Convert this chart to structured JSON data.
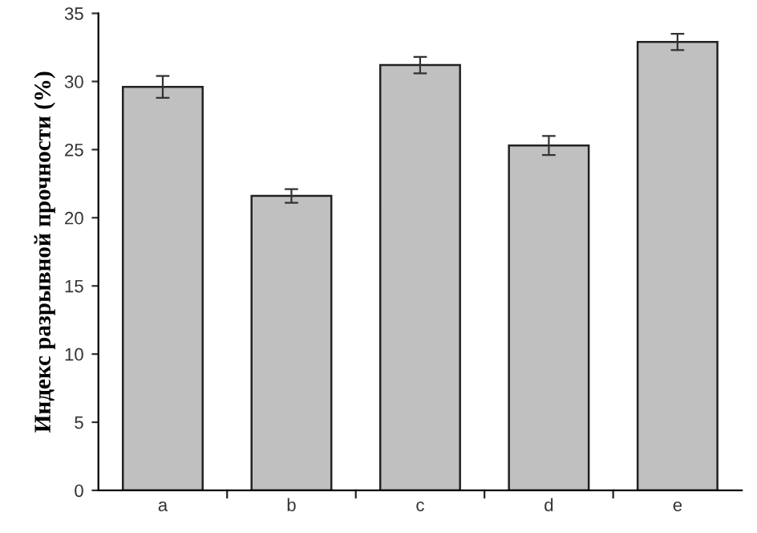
{
  "chart_data": {
    "type": "bar",
    "ylabel": "Индекс разрывной прочности (%)",
    "categories": [
      "a",
      "b",
      "c",
      "d",
      "e"
    ],
    "values": [
      29.6,
      21.6,
      31.2,
      25.3,
      32.9
    ],
    "errors": [
      0.8,
      0.5,
      0.6,
      0.7,
      0.6
    ],
    "color": "#c0c0c0",
    "ylim": [
      0,
      35
    ],
    "yticks": [
      0,
      5,
      10,
      15,
      20,
      25,
      30,
      35
    ],
    "grid": false,
    "legend": false
  }
}
